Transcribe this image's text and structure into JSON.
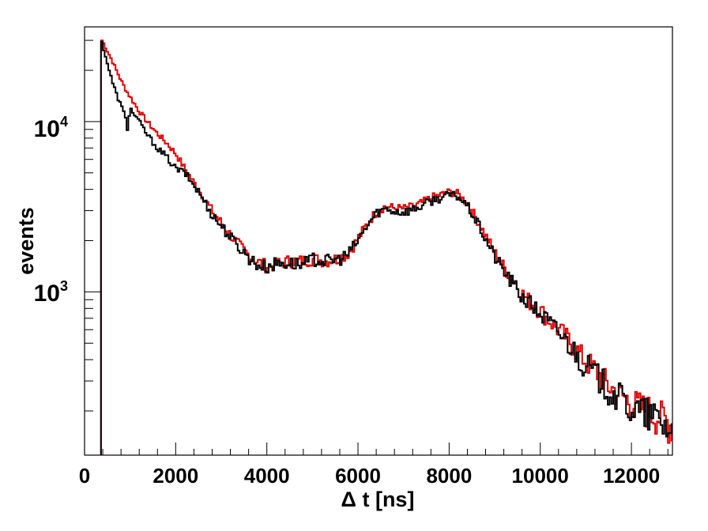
{
  "chart_data": {
    "type": "line",
    "title": "",
    "xlabel": "Δ t [ns]",
    "ylabel": "events",
    "xlim": [
      0,
      12900
    ],
    "ylim": [
      110,
      36000
    ],
    "y_scale": "log",
    "grid": false,
    "legend": "none",
    "x_tick_labels": [
      "0",
      "2000",
      "4000",
      "6000",
      "8000",
      "10000",
      "12000"
    ],
    "y_tick_labels": [
      {
        "base": "10",
        "exp": "3"
      },
      {
        "base": "10",
        "exp": "4"
      }
    ],
    "series": [
      {
        "color": "#e00000",
        "x": [
          360,
          400,
          500,
          600,
          700,
          800,
          900,
          1000,
          1200,
          1400,
          1600,
          1800,
          2000,
          2200,
          2500,
          2800,
          3000,
          3300,
          3600,
          3800,
          4000,
          4200,
          4500,
          4800,
          5000,
          5300,
          5600,
          5800,
          6000,
          6200,
          6400,
          6600,
          6800,
          7000,
          7200,
          7400,
          7600,
          7800,
          8000,
          8200,
          8400,
          8600,
          8800,
          9000,
          9200,
          9400,
          9600,
          9800,
          10000,
          10300,
          10600,
          10900,
          11200,
          11500,
          11800,
          12100,
          12400,
          12700,
          12900
        ],
        "y": [
          30500,
          29500,
          26000,
          23000,
          20000,
          17500,
          15500,
          14000,
          11500,
          9800,
          8500,
          7500,
          6500,
          5300,
          4000,
          3000,
          2550,
          2000,
          1650,
          1500,
          1420,
          1450,
          1520,
          1520,
          1560,
          1520,
          1580,
          1700,
          2050,
          2500,
          2950,
          3180,
          3100,
          3080,
          3150,
          3320,
          3560,
          3700,
          3860,
          3760,
          3300,
          2700,
          2150,
          1700,
          1400,
          1180,
          980,
          860,
          780,
          640,
          530,
          420,
          350,
          280,
          245,
          215,
          200,
          180,
          165
        ]
      },
      {
        "color": "#000000",
        "x": [
          360,
          400,
          500,
          600,
          700,
          800,
          900,
          950,
          960,
          1000,
          1200,
          1400,
          1600,
          1800,
          2000,
          2200,
          2500,
          2800,
          3000,
          3300,
          3600,
          3800,
          4000,
          4200,
          4500,
          4800,
          5000,
          5300,
          5600,
          5800,
          6000,
          6200,
          6400,
          6600,
          6800,
          7000,
          7200,
          7400,
          7600,
          7800,
          8000,
          8200,
          8400,
          8600,
          8800,
          9000,
          9200,
          9400,
          9600,
          9800,
          10000,
          10300,
          10600,
          10900,
          11200,
          11500,
          11800,
          12100,
          12400,
          12700,
          12900
        ],
        "y": [
          30500,
          28000,
          22000,
          17500,
          14500,
          12500,
          10500,
          8800,
          10200,
          12000,
          10000,
          8200,
          7000,
          6200,
          5300,
          5000,
          3900,
          2850,
          2450,
          1950,
          1600,
          1440,
          1400,
          1470,
          1480,
          1440,
          1560,
          1520,
          1560,
          1680,
          2000,
          2450,
          2900,
          3080,
          2980,
          2950,
          3050,
          3200,
          3420,
          3560,
          3720,
          3640,
          3200,
          2600,
          2050,
          1620,
          1330,
          1120,
          940,
          840,
          750,
          620,
          510,
          400,
          330,
          270,
          230,
          200,
          190,
          170,
          150
        ]
      }
    ]
  }
}
